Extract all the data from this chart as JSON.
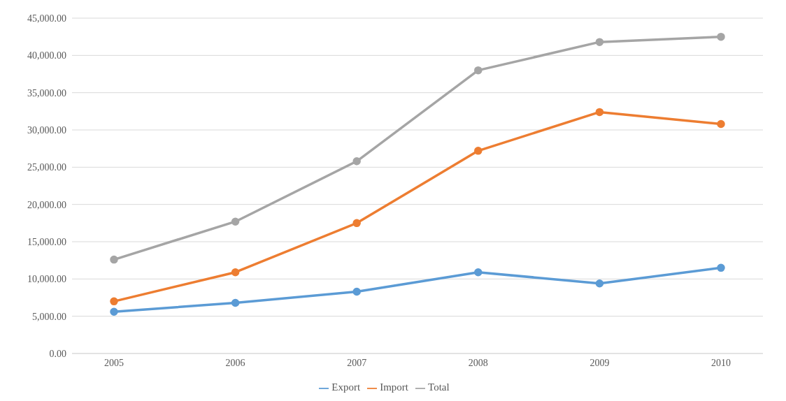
{
  "chart_data": {
    "type": "line",
    "categories": [
      "2005",
      "2006",
      "2007",
      "2008",
      "2009",
      "2010"
    ],
    "series": [
      {
        "name": "Export",
        "color": "#5b9bd5",
        "values": [
          5600,
          6800,
          8300,
          10900,
          9400,
          11500
        ]
      },
      {
        "name": "Import",
        "color": "#ed7d31",
        "values": [
          7000,
          10900,
          17500,
          27200,
          32400,
          30800
        ]
      },
      {
        "name": "Total",
        "color": "#a5a5a5",
        "values": [
          12600,
          17700,
          25800,
          38000,
          41800,
          42500
        ]
      }
    ],
    "ylim": [
      0,
      45000
    ],
    "yticks": [
      {
        "value": 0,
        "label": "0.00"
      },
      {
        "value": 5000,
        "label": "5,000.00"
      },
      {
        "value": 10000,
        "label": "10,000.00"
      },
      {
        "value": 15000,
        "label": "15,000.00"
      },
      {
        "value": 20000,
        "label": "20,000.00"
      },
      {
        "value": 25000,
        "label": "25,000.00"
      },
      {
        "value": 30000,
        "label": "30,000.00"
      },
      {
        "value": 35000,
        "label": "35,000.00"
      },
      {
        "value": 40000,
        "label": "40,000.00"
      },
      {
        "value": 45000,
        "label": "45,000.00"
      }
    ],
    "grid": "y",
    "legend": "bottom",
    "marker": "circle",
    "line_style": "solid"
  }
}
